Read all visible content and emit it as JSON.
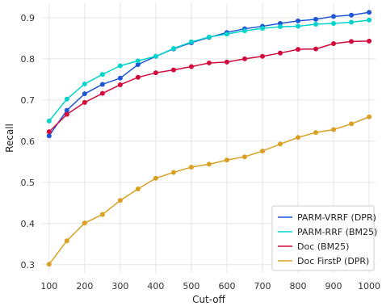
{
  "chart_data": {
    "type": "line",
    "title": "",
    "xlabel": "Cut-off",
    "ylabel": "Recall",
    "x": [
      100,
      150,
      200,
      250,
      300,
      350,
      400,
      450,
      500,
      550,
      600,
      650,
      700,
      750,
      800,
      850,
      900,
      950,
      1000
    ],
    "xticks": [
      100,
      200,
      300,
      400,
      500,
      600,
      700,
      800,
      900,
      1000
    ],
    "yticks": [
      0.3,
      0.4,
      0.5,
      0.6,
      0.7,
      0.8,
      0.9
    ],
    "xlim": [
      80,
      1018
    ],
    "ylim": [
      0.28,
      0.935
    ],
    "grid": true,
    "legend_position": "lower-right",
    "series": [
      {
        "name": "PARM-VRRF (DPR)",
        "color": "#1f56d6",
        "values": [
          0.613,
          0.675,
          0.715,
          0.738,
          0.753,
          0.786,
          0.806,
          0.824,
          0.839,
          0.852,
          0.864,
          0.873,
          0.879,
          0.886,
          0.892,
          0.896,
          0.903,
          0.906,
          0.913
        ]
      },
      {
        "name": "PARM-RRF (BM25)",
        "color": "#00d4cc",
        "values": [
          0.649,
          0.702,
          0.739,
          0.762,
          0.783,
          0.795,
          0.806,
          0.825,
          0.841,
          0.853,
          0.86,
          0.868,
          0.874,
          0.878,
          0.879,
          0.884,
          0.886,
          0.889,
          0.894
        ]
      },
      {
        "name": "Doc (BM25)",
        "color": "#d2093c",
        "values": [
          0.623,
          0.665,
          0.694,
          0.716,
          0.737,
          0.755,
          0.766,
          0.773,
          0.781,
          0.79,
          0.792,
          0.8,
          0.806,
          0.814,
          0.823,
          0.824,
          0.837,
          0.842,
          0.843
        ]
      },
      {
        "name": "Doc FirstP (DPR)",
        "color": "#d9a023",
        "values": [
          0.301,
          0.358,
          0.401,
          0.422,
          0.456,
          0.484,
          0.51,
          0.524,
          0.537,
          0.544,
          0.554,
          0.562,
          0.576,
          0.593,
          0.609,
          0.621,
          0.628,
          0.642,
          0.659
        ]
      }
    ]
  }
}
